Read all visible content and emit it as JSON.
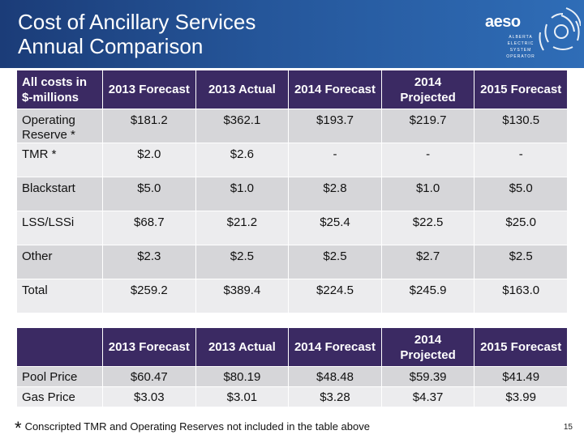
{
  "slide": {
    "title_line1": "Cost of Ancillary Services",
    "title_line2": "Annual Comparison",
    "page_number": "15"
  },
  "logo": {
    "wordmark": "aeso",
    "sub1": "ALBERTA",
    "sub2": "ELECTRIC",
    "sub3": "SYSTEM",
    "sub4": "OPERATOR"
  },
  "cost_table": {
    "headers": [
      "All costs in $-millions",
      "2013 Forecast",
      "2013 Actual",
      "2014 Forecast",
      "2014 Projected",
      "2015 Forecast"
    ],
    "rows": [
      [
        "Operating Reserve *",
        "$181.2",
        "$362.1",
        "$193.7",
        "$219.7",
        "$130.5"
      ],
      [
        "TMR *",
        "$2.0",
        "$2.6",
        "-",
        "-",
        "-"
      ],
      [
        "Blackstart",
        "$5.0",
        "$1.0",
        "$2.8",
        "$1.0",
        "$5.0"
      ],
      [
        "LSS/LSSi",
        "$68.7",
        "$21.2",
        "$25.4",
        "$22.5",
        "$25.0"
      ],
      [
        "Other",
        "$2.3",
        "$2.5",
        "$2.5",
        "$2.7",
        "$2.5"
      ],
      [
        "Total",
        "$259.2",
        "$389.4",
        "$224.5",
        "$245.9",
        "$163.0"
      ]
    ]
  },
  "price_table": {
    "headers": [
      "",
      "2013 Forecast",
      "2013 Actual",
      "2014 Forecast",
      "2014 Projected",
      "2015 Forecast"
    ],
    "rows": [
      [
        "Pool Price",
        "$60.47",
        "$80.19",
        "$48.48",
        "$59.39",
        "$41.49"
      ],
      [
        "Gas Price",
        "$3.03",
        "$3.01",
        "$3.28",
        "$4.37",
        "$3.99"
      ]
    ]
  },
  "footnote": {
    "star": "*",
    "text": "Conscripted TMR and Operating Reserves not included in the table above"
  },
  "colors": {
    "header_blue": "#25569a",
    "table_header_purple": "#3b2a63",
    "row_dark": "#d6d6d9",
    "row_light": "#ececee"
  }
}
